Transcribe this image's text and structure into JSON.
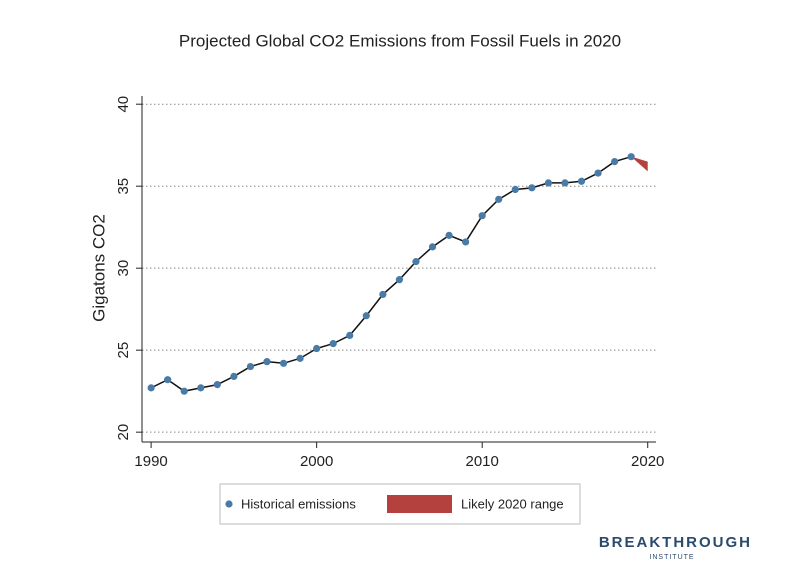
{
  "chart_data": {
    "type": "line",
    "title": "Projected Global CO2 Emissions from Fossil Fuels in 2020",
    "ylabel": "Gigatons CO2",
    "x": [
      1990,
      1991,
      1992,
      1993,
      1994,
      1995,
      1996,
      1997,
      1998,
      1999,
      2000,
      2001,
      2002,
      2003,
      2004,
      2005,
      2006,
      2007,
      2008,
      2009,
      2010,
      2011,
      2012,
      2013,
      2014,
      2015,
      2016,
      2017,
      2018,
      2019
    ],
    "series": [
      {
        "name": "Historical emissions",
        "color": "#4a7ba7",
        "values": [
          22.7,
          23.2,
          22.5,
          22.7,
          22.9,
          23.4,
          24.0,
          24.3,
          24.2,
          24.5,
          25.1,
          25.4,
          25.9,
          27.1,
          28.4,
          29.3,
          30.4,
          31.3,
          32.0,
          31.6,
          33.2,
          34.2,
          34.8,
          34.9,
          35.2,
          35.2,
          35.3,
          35.8,
          36.5,
          36.8
        ]
      }
    ],
    "range": {
      "name": "Likely 2020 range",
      "color": "#b5413f",
      "x": [
        2019,
        2020
      ],
      "low": [
        36.8,
        35.9
      ],
      "high": [
        36.8,
        36.5
      ]
    },
    "xlim": [
      1989.45,
      2020.5
    ],
    "xticks": [
      1990,
      2000,
      2010,
      2020
    ],
    "ylim": [
      19.4,
      40.5
    ],
    "yticks": [
      20,
      25,
      30,
      35,
      40
    ],
    "grid": true
  },
  "logo": {
    "name": "BREAKTHROUGH",
    "sub": "INSTITUTE"
  }
}
